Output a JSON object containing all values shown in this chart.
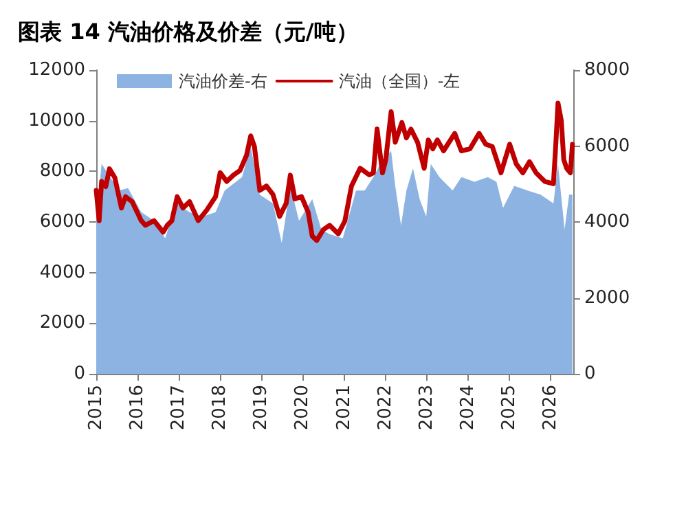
{
  "chart_data": {
    "type": "line",
    "title": "图表 14 汽油价格及价差（元/吨）",
    "xlim": [
      2015,
      2026.55
    ],
    "xticks": [
      2015,
      2016,
      2017,
      2018,
      2019,
      2020,
      2021,
      2022,
      2023,
      2024,
      2025,
      2026
    ],
    "ylim": [
      0,
      12000
    ],
    "yticks": [
      0,
      2000,
      4000,
      6000,
      8000,
      10000,
      12000
    ],
    "y2lim": [
      0,
      8000
    ],
    "y2ticks": [
      0,
      2000,
      4000,
      6000,
      8000
    ],
    "legend": "top left",
    "grid": false,
    "marker": "none",
    "line_style": "solid",
    "series": [
      {
        "name": "汽油价差-右",
        "type": "area",
        "axis": "y2",
        "color": "#8db3e2",
        "x": [
          2015.0,
          2015.13,
          2015.55,
          2015.77,
          2016.09,
          2016.4,
          2016.67,
          2016.94,
          2017.26,
          2017.57,
          2017.89,
          2018.11,
          2018.53,
          2018.74,
          2018.96,
          2019.28,
          2019.49,
          2019.7,
          2019.91,
          2020.23,
          2020.45,
          2020.65,
          2020.97,
          2021.29,
          2021.5,
          2021.71,
          2021.93,
          2022.14,
          2022.24,
          2022.38,
          2022.51,
          2022.67,
          2022.83,
          2022.99,
          2023.1,
          2023.31,
          2023.63,
          2023.84,
          2024.16,
          2024.48,
          2024.69,
          2024.85,
          2025.12,
          2025.44,
          2025.76,
          2026.07,
          2026.18,
          2026.34,
          2026.45,
          2026.53
        ],
        "values": [
          4030,
          5530,
          4830,
          4890,
          4260,
          4030,
          3570,
          4490,
          4260,
          4140,
          4260,
          4830,
          5180,
          5990,
          4720,
          4490,
          3450,
          4950,
          4030,
          4600,
          3800,
          3680,
          3570,
          4830,
          4830,
          5180,
          5640,
          5870,
          4950,
          3910,
          4830,
          5410,
          4600,
          4140,
          5530,
          5180,
          4830,
          5180,
          5060,
          5180,
          5060,
          4370,
          4950,
          4830,
          4720,
          4490,
          5530,
          3800,
          4720,
          4720
        ]
      },
      {
        "name": "汽油（全国）-左",
        "type": "line",
        "axis": "y",
        "color": "#c00000",
        "x": [
          2015.0,
          2015.07,
          2015.13,
          2015.23,
          2015.32,
          2015.45,
          2015.61,
          2015.71,
          2015.87,
          2016.09,
          2016.19,
          2016.4,
          2016.62,
          2016.72,
          2016.83,
          2016.96,
          2017.1,
          2017.26,
          2017.47,
          2017.68,
          2017.89,
          2018.0,
          2018.16,
          2018.32,
          2018.48,
          2018.64,
          2018.74,
          2018.83,
          2018.96,
          2019.12,
          2019.28,
          2019.44,
          2019.6,
          2019.7,
          2019.81,
          2019.97,
          2020.13,
          2020.23,
          2020.34,
          2020.5,
          2020.65,
          2020.86,
          2021.02,
          2021.18,
          2021.39,
          2021.61,
          2021.71,
          2021.8,
          2021.93,
          2022.01,
          2022.14,
          2022.24,
          2022.4,
          2022.51,
          2022.62,
          2022.78,
          2022.94,
          2023.04,
          2023.15,
          2023.26,
          2023.41,
          2023.68,
          2023.84,
          2024.05,
          2024.27,
          2024.43,
          2024.59,
          2024.8,
          2025.01,
          2025.17,
          2025.33,
          2025.49,
          2025.65,
          2025.86,
          2026.07,
          2026.13,
          2026.18,
          2026.26,
          2026.32,
          2026.39,
          2026.48,
          2026.53
        ],
        "values": [
          7250,
          6050,
          7600,
          7400,
          8100,
          7750,
          6550,
          7000,
          6800,
          6050,
          5870,
          6050,
          5600,
          5870,
          6050,
          7000,
          6550,
          6800,
          6050,
          6480,
          7000,
          7950,
          7600,
          7850,
          8030,
          8640,
          9400,
          8980,
          7250,
          7420,
          7080,
          6220,
          6740,
          7850,
          6910,
          7000,
          6390,
          5440,
          5270,
          5700,
          5870,
          5530,
          6040,
          7420,
          8120,
          7860,
          7940,
          9670,
          7940,
          8460,
          10360,
          9150,
          9930,
          9320,
          9670,
          9150,
          8120,
          9240,
          8890,
          9240,
          8810,
          9500,
          8810,
          8890,
          9500,
          9070,
          8980,
          7940,
          9070,
          8290,
          7940,
          8380,
          7940,
          7600,
          7510,
          9150,
          10700,
          10010,
          8460,
          8120,
          7940,
          9070
        ]
      }
    ]
  }
}
